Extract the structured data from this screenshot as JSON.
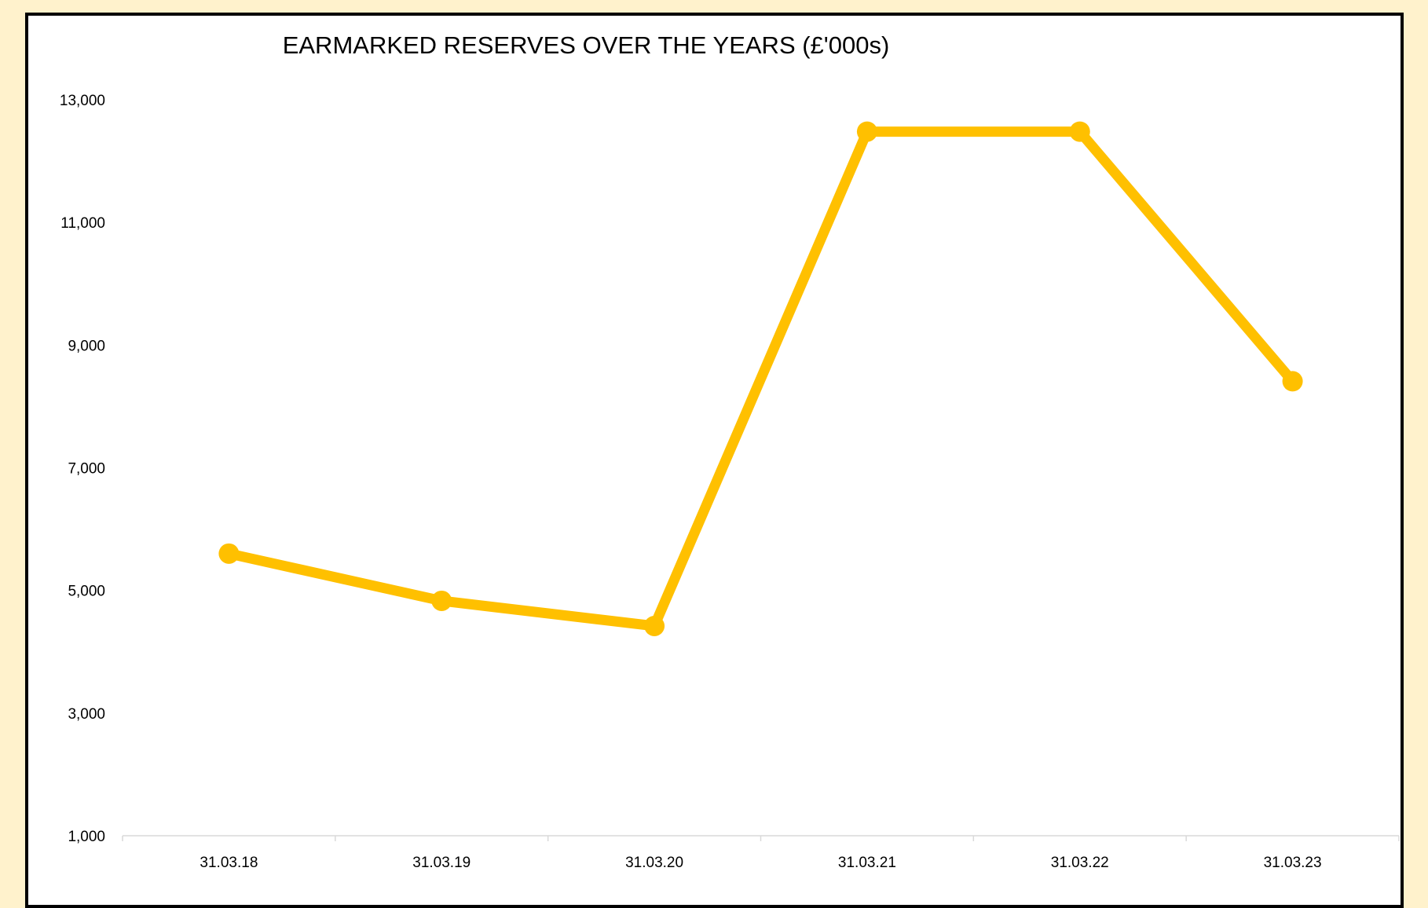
{
  "chart_data": {
    "type": "line",
    "title": "EARMARKED RESERVES OVER THE YEARS (£'000s)",
    "xlabel": "",
    "ylabel": "",
    "categories": [
      "31.03.18",
      "31.03.19",
      "31.03.20",
      "31.03.21",
      "31.03.22",
      "31.03.23"
    ],
    "series": [
      {
        "values": [
          5600,
          4830,
          4420,
          12480,
          12480,
          8410
        ],
        "color": "#FFC000"
      }
    ],
    "yticks": [
      1000,
      3000,
      5000,
      7000,
      9000,
      11000,
      13000
    ],
    "ytick_labels": [
      "1,000",
      "3,000",
      "5,000",
      "7,000",
      "9,000",
      "11,000",
      "13,000"
    ],
    "ylim": [
      1000,
      13000
    ],
    "grid": false,
    "legend": "none",
    "colors": {
      "page_background": "#FFF2CC",
      "plot_background": "#FFFFFF",
      "frame_border": "#000000",
      "axis_line": "#D9D9D9"
    }
  }
}
